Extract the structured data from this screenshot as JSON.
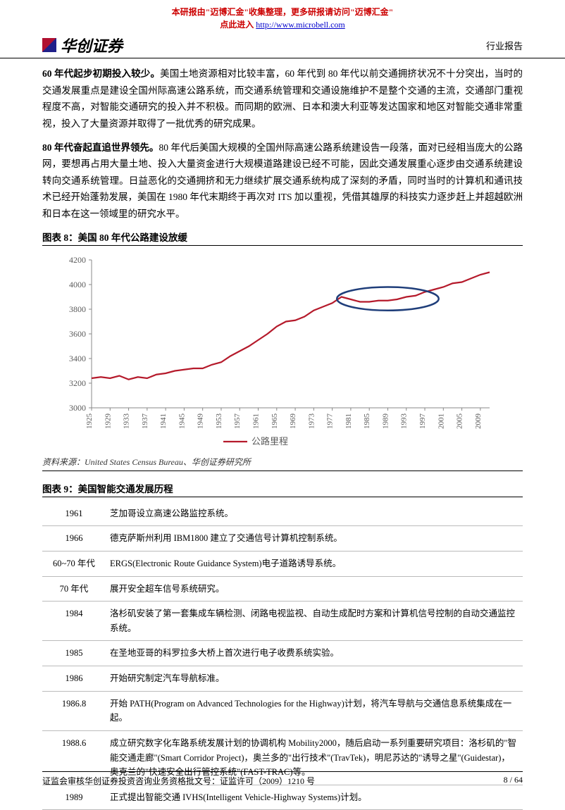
{
  "watermark": {
    "line1_a": "本研报由\"",
    "line1_b": "迈博汇金",
    "line1_c": "\"收集整理，更多研报请访问\"",
    "line1_d": "迈博汇金",
    "line1_e": "\"",
    "line2_a": "点此进入 ",
    "link": "http://www.microbell.com"
  },
  "header": {
    "company": "华创证券",
    "report_type": "行业报告"
  },
  "paragraphs": {
    "p1_bold": "60 年代起步初期投入较少。",
    "p1_rest": "美国土地资源相对比较丰富，60 年代到 80 年代以前交通拥挤状况不十分突出，当时的交通发展重点是建设全国州际高速公路系统，而交通系统管理和交通设施维护不是整个交通的主流，交通部门重视程度不高，对智能交通研究的投入并不积极。而同期的欧洲、日本和澳大利亚等发达国家和地区对智能交通非常重视，投入了大量资源并取得了一批优秀的研究成果。",
    "p2_bold": "80 年代奋起直追世界领先。",
    "p2_rest": "80 年代后美国大规模的全国州际高速公路系统建设告一段落，面对已经相当庞大的公路网，要想再占用大量土地、投入大量资金进行大规模道路建设已经不可能，因此交通发展重心逐步由交通系统建设转向交通系统管理。日益恶化的交通拥挤和无力继续扩展交通系统构成了深刻的矛盾，同时当时的计算机和通讯技术已经开始蓬勃发展，美国在 1980 年代末期终于再次对 ITS 加以重视，凭借其雄厚的科技实力逐步赶上并超越欧洲和日本在这一领域里的研究水平。"
  },
  "figure8": {
    "title": "图表 8：美国 80 年代公路建设放缓",
    "source": "资料来源：United States Census Bureau、华创证券研究所",
    "chart": {
      "type": "line",
      "series_name": "公路里程",
      "line_color": "#b51a2b",
      "line_width": 2.2,
      "circle_color": "#1f3e7a",
      "circle_width": 2.5,
      "axis_color": "#888888",
      "text_color": "#5a5a5a",
      "background_color": "#ffffff",
      "y_axis": {
        "min": 3000,
        "max": 4200,
        "step": 200,
        "ticks": [
          3000,
          3200,
          3400,
          3600,
          3800,
          4000,
          4200
        ]
      },
      "x_axis": {
        "ticks": [
          1925,
          1929,
          1933,
          1937,
          1941,
          1945,
          1949,
          1953,
          1957,
          1961,
          1965,
          1969,
          1973,
          1977,
          1981,
          1985,
          1989,
          1993,
          1997,
          2001,
          2005,
          2009
        ]
      },
      "data": [
        [
          1925,
          3240
        ],
        [
          1927,
          3250
        ],
        [
          1929,
          3240
        ],
        [
          1931,
          3260
        ],
        [
          1933,
          3230
        ],
        [
          1935,
          3250
        ],
        [
          1937,
          3240
        ],
        [
          1939,
          3270
        ],
        [
          1941,
          3280
        ],
        [
          1943,
          3300
        ],
        [
          1945,
          3310
        ],
        [
          1947,
          3320
        ],
        [
          1949,
          3320
        ],
        [
          1951,
          3350
        ],
        [
          1953,
          3370
        ],
        [
          1955,
          3420
        ],
        [
          1957,
          3460
        ],
        [
          1959,
          3500
        ],
        [
          1961,
          3550
        ],
        [
          1963,
          3600
        ],
        [
          1965,
          3660
        ],
        [
          1967,
          3700
        ],
        [
          1969,
          3710
        ],
        [
          1971,
          3740
        ],
        [
          1973,
          3790
        ],
        [
          1975,
          3820
        ],
        [
          1977,
          3850
        ],
        [
          1979,
          3900
        ],
        [
          1981,
          3880
        ],
        [
          1983,
          3860
        ],
        [
          1985,
          3860
        ],
        [
          1987,
          3870
        ],
        [
          1989,
          3870
        ],
        [
          1991,
          3880
        ],
        [
          1993,
          3900
        ],
        [
          1995,
          3910
        ],
        [
          1997,
          3940
        ],
        [
          1999,
          3960
        ],
        [
          2001,
          3980
        ],
        [
          2003,
          4010
        ],
        [
          2005,
          4020
        ],
        [
          2007,
          4050
        ],
        [
          2009,
          4080
        ],
        [
          2011,
          4100
        ]
      ],
      "circle_region": {
        "cx_year": 1989,
        "cy_val": 3885,
        "rx_years": 11,
        "ry_val": 95
      }
    }
  },
  "figure9": {
    "title": "图表 9：美国智能交通发展历程",
    "rows": [
      {
        "year": "1961",
        "text": "芝加哥设立高速公路监控系统。"
      },
      {
        "year": "1966",
        "text": "德克萨斯州利用 IBM1800 建立了交通信号计算机控制系统。"
      },
      {
        "year": "60~70 年代",
        "text": "ERGS(Electronic Route Guidance System)电子道路诱导系统。"
      },
      {
        "year": "70 年代",
        "text": "展开安全超车信号系统研究。"
      },
      {
        "year": "1984",
        "text": "洛杉矶安装了第一套集成车辆检测、闭路电视监视、自动生成配时方案和计算机信号控制的自动交通监控系统。"
      },
      {
        "year": "1985",
        "text": "在圣地亚哥的科罗拉多大桥上首次进行电子收费系统实验。"
      },
      {
        "year": "1986",
        "text": "开始研究制定汽车导航标准。"
      },
      {
        "year": "1986.8",
        "text": "开始 PATH(Program on Advanced Technologies for the Highway)计划，将汽车导航与交通信息系统集成在一起。"
      },
      {
        "year": "1988.6",
        "text": "成立研究数字化车路系统发展计划的协调机构 Mobility2000，随后启动一系列重要研究项目：洛杉矶的\"智能交通走廊\"(Smart Corridor Project)，奥兰多的\"出行技术\"(TravTek)，明尼苏达的\"诱导之星\"(Guidestar)，奥克兰的\"快速安全出行管控系统\"(FAST-TRAC)等。"
      },
      {
        "year": "1989",
        "text": "正式提出智能交通 IVHS(Intelligent Vehicle-Highway Systems)计划。"
      }
    ]
  },
  "footer": {
    "left": "证监会审核华创证券投资咨询业务资格批文号：证监许可（2009）1210 号",
    "right": "8 / 64"
  }
}
